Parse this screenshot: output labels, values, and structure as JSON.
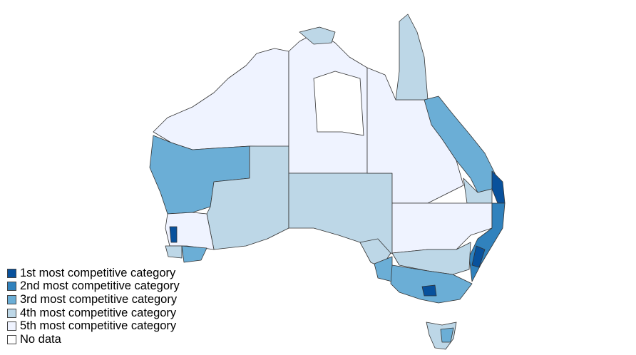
{
  "legend": {
    "items": [
      {
        "label": "1st most competitive category",
        "color": "#08519c"
      },
      {
        "label": "2nd most competitive category",
        "color": "#3182bd"
      },
      {
        "label": "3rd most competitive category",
        "color": "#6baed6"
      },
      {
        "label": "4th most competitive category",
        "color": "#bdd7e7"
      },
      {
        "label": "5th most competitive category",
        "color": "#eff3ff"
      },
      {
        "label": "No data",
        "color": "#ffffff"
      }
    ]
  }
}
